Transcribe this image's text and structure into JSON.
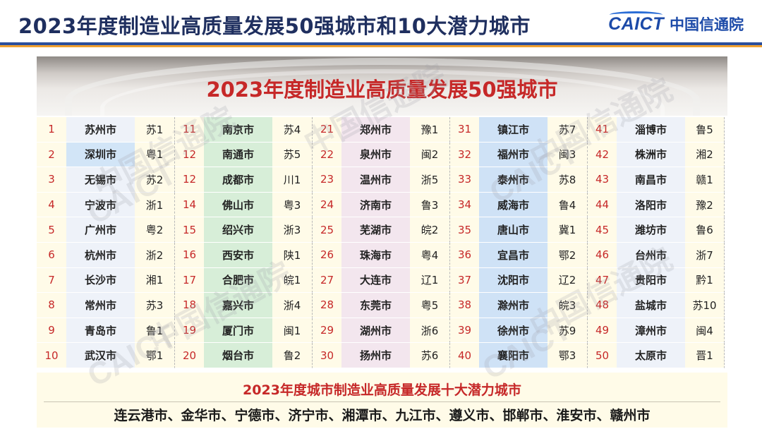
{
  "header": {
    "title": "2023年度制造业高质量发展50强城市和10大潜力城市",
    "logo_en": "CAICT",
    "logo_cn": "中国信通院"
  },
  "table": {
    "title": "2023年度制造业高质量发展50强城市",
    "rows": [
      [
        [
          "1",
          "苏州市",
          "苏1"
        ],
        [
          "11",
          "南京市",
          "苏4"
        ],
        [
          "21",
          "郑州市",
          "豫1"
        ],
        [
          "31",
          "镇江市",
          "苏7"
        ],
        [
          "41",
          "淄博市",
          "鲁5"
        ]
      ],
      [
        [
          "2",
          "深圳市",
          "粤1"
        ],
        [
          "12",
          "南通市",
          "苏5"
        ],
        [
          "22",
          "泉州市",
          "闽2"
        ],
        [
          "32",
          "福州市",
          "闽3"
        ],
        [
          "42",
          "株洲市",
          "湘2"
        ]
      ],
      [
        [
          "3",
          "无锡市",
          "苏2"
        ],
        [
          "12",
          "成都市",
          "川1"
        ],
        [
          "23",
          "温州市",
          "浙5"
        ],
        [
          "33",
          "泰州市",
          "苏8"
        ],
        [
          "43",
          "南昌市",
          "赣1"
        ]
      ],
      [
        [
          "4",
          "宁波市",
          "浙1"
        ],
        [
          "14",
          "佛山市",
          "粤3"
        ],
        [
          "24",
          "济南市",
          "鲁3"
        ],
        [
          "34",
          "威海市",
          "鲁4"
        ],
        [
          "44",
          "洛阳市",
          "豫2"
        ]
      ],
      [
        [
          "5",
          "广州市",
          "粤2"
        ],
        [
          "15",
          "绍兴市",
          "浙3"
        ],
        [
          "25",
          "芜湖市",
          "皖2"
        ],
        [
          "35",
          "唐山市",
          "冀1"
        ],
        [
          "45",
          "潍坊市",
          "鲁6"
        ]
      ],
      [
        [
          "6",
          "杭州市",
          "浙2"
        ],
        [
          "16",
          "西安市",
          "陕1"
        ],
        [
          "26",
          "珠海市",
          "粤4"
        ],
        [
          "36",
          "宜昌市",
          "鄂2"
        ],
        [
          "46",
          "台州市",
          "浙7"
        ]
      ],
      [
        [
          "7",
          "长沙市",
          "湘1"
        ],
        [
          "17",
          "合肥市",
          "皖1"
        ],
        [
          "27",
          "大连市",
          "辽1"
        ],
        [
          "37",
          "沈阳市",
          "辽2"
        ],
        [
          "47",
          "贵阳市",
          "黔1"
        ]
      ],
      [
        [
          "8",
          "常州市",
          "苏3"
        ],
        [
          "18",
          "嘉兴市",
          "浙4"
        ],
        [
          "28",
          "东莞市",
          "粤5"
        ],
        [
          "38",
          "滁州市",
          "皖3"
        ],
        [
          "48",
          "盐城市",
          "苏10"
        ]
      ],
      [
        [
          "9",
          "青岛市",
          "鲁1"
        ],
        [
          "19",
          "厦门市",
          "闽1"
        ],
        [
          "29",
          "湖州市",
          "浙6"
        ],
        [
          "39",
          "徐州市",
          "苏9"
        ],
        [
          "49",
          "漳州市",
          "闽4"
        ]
      ],
      [
        [
          "10",
          "武汉市",
          "鄂1"
        ],
        [
          "20",
          "烟台市",
          "鲁2"
        ],
        [
          "30",
          "扬州市",
          "苏6"
        ],
        [
          "40",
          "襄阳市",
          "鄂3"
        ],
        [
          "50",
          "太原市",
          "晋1"
        ]
      ]
    ]
  },
  "potential": {
    "title": "2023年度城市制造业高质量发展十大潜力城市",
    "cities": "连云港市、金华市、宁德市、济宁市、湘潭市、九江市、遵义市、邯郸市、淮安市、赣州市"
  },
  "watermark": {
    "en": "CAICT",
    "cn": "中国信通院"
  },
  "colors": {
    "title_navy": "#1f2f5f",
    "brand_blue": "#1c4aa8",
    "accent_red": "#c62828",
    "accent_orange": "#f0a030",
    "cream": "#fffbe8"
  }
}
